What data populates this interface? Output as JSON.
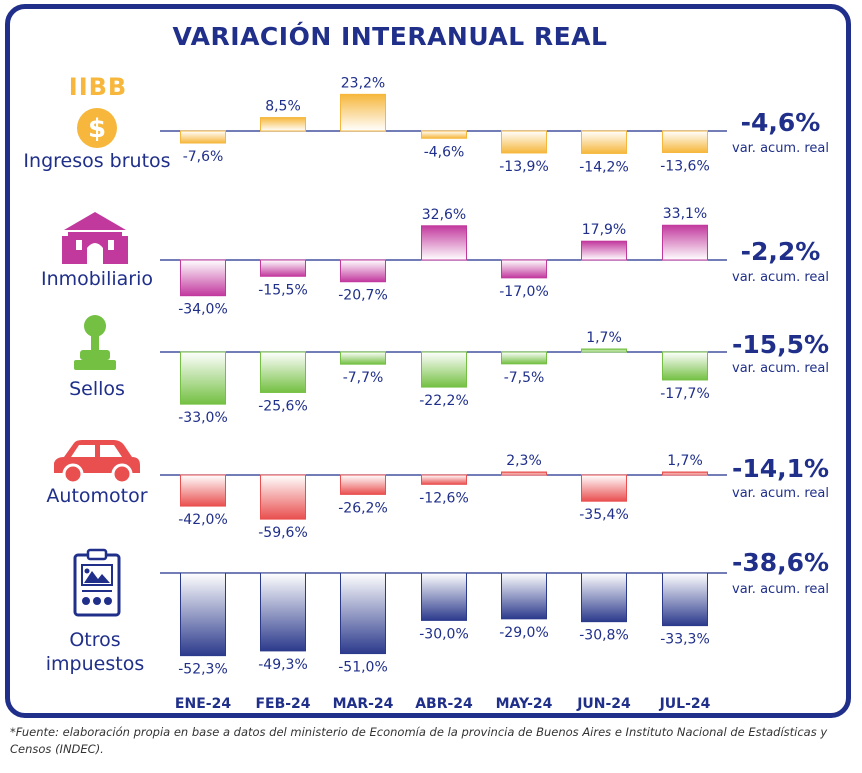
{
  "title": "VARIACIÓN INTERANUAL REAL",
  "footnote": "*Fuente: elaboración propia en base a datos del ministerio de Economía de la provincia de Buenos Aires e Instituto Nacional de Estadísticas y Censos (INDEC).",
  "colors": {
    "navy": "#1f2f8a",
    "iibb": "#f6b73c",
    "inmobiliario": "#c2399e",
    "sellos": "#74c043",
    "automotor": "#e94f4f",
    "otros": "#2c3a8c"
  },
  "icons": {
    "iibb": "dollar-coin-icon",
    "inmobiliario": "house-icon",
    "sellos": "stamp-icon",
    "automotor": "car-icon",
    "otros": "document-icon"
  },
  "iibb_logo_text": "IIBB",
  "chart_data": {
    "type": "bar",
    "title": "VARIACIÓN INTERANUAL REAL",
    "categories": [
      "ENE-24",
      "FEB-24",
      "MAR-24",
      "ABR-24",
      "MAY-24",
      "JUN-24",
      "JUL-24"
    ],
    "series": [
      {
        "key": "iibb",
        "name": "Ingresos brutos",
        "values": [
          -7.6,
          8.5,
          23.2,
          -4.6,
          -13.9,
          -14.2,
          -13.6
        ],
        "labels": [
          "-7,6%",
          "8,5%",
          "23,2%",
          "-4,6%",
          "-13,9%",
          "-14,2%",
          "-13,6%"
        ],
        "accumulated": "-4,6%",
        "accumulated_label": "var. acum. real"
      },
      {
        "key": "inmobiliario",
        "name": "Inmobiliario",
        "values": [
          -34.0,
          -15.5,
          -20.7,
          32.6,
          -17.0,
          17.9,
          33.1
        ],
        "labels": [
          "-34,0%",
          "-15,5%",
          "-20,7%",
          "32,6%",
          "-17,0%",
          "17,9%",
          "33,1%"
        ],
        "accumulated": "-2,2%",
        "accumulated_label": "var. acum. real"
      },
      {
        "key": "sellos",
        "name": "Sellos",
        "values": [
          -33.0,
          -25.6,
          -7.7,
          -22.2,
          -7.5,
          1.7,
          -17.7
        ],
        "labels": [
          "-33,0%",
          "-25,6%",
          "-7,7%",
          "-22,2%",
          "-7,5%",
          "1,7%",
          "-17,7%"
        ],
        "accumulated": "-15,5%",
        "accumulated_label": "var. acum. real"
      },
      {
        "key": "automotor",
        "name": "Automotor",
        "values": [
          -42.0,
          -59.6,
          -26.2,
          -12.6,
          2.3,
          -35.4,
          1.7
        ],
        "labels": [
          "-42,0%",
          "-59,6%",
          "-26,2%",
          "-12,6%",
          "2,3%",
          "-35,4%",
          "1,7%"
        ],
        "accumulated": "-14,1%",
        "accumulated_label": "var. acum. real"
      },
      {
        "key": "otros",
        "name": "Otros impuestos",
        "values": [
          -52.3,
          -49.3,
          -51.0,
          -30.0,
          -29.0,
          -30.8,
          -33.3
        ],
        "labels": [
          "-52,3%",
          "-49,3%",
          "-51,0%",
          "-30,0%",
          "-29,0%",
          "-30,8%",
          "-33,3%"
        ],
        "accumulated": "-38,6%",
        "accumulated_label": "var. acum. real"
      }
    ]
  }
}
